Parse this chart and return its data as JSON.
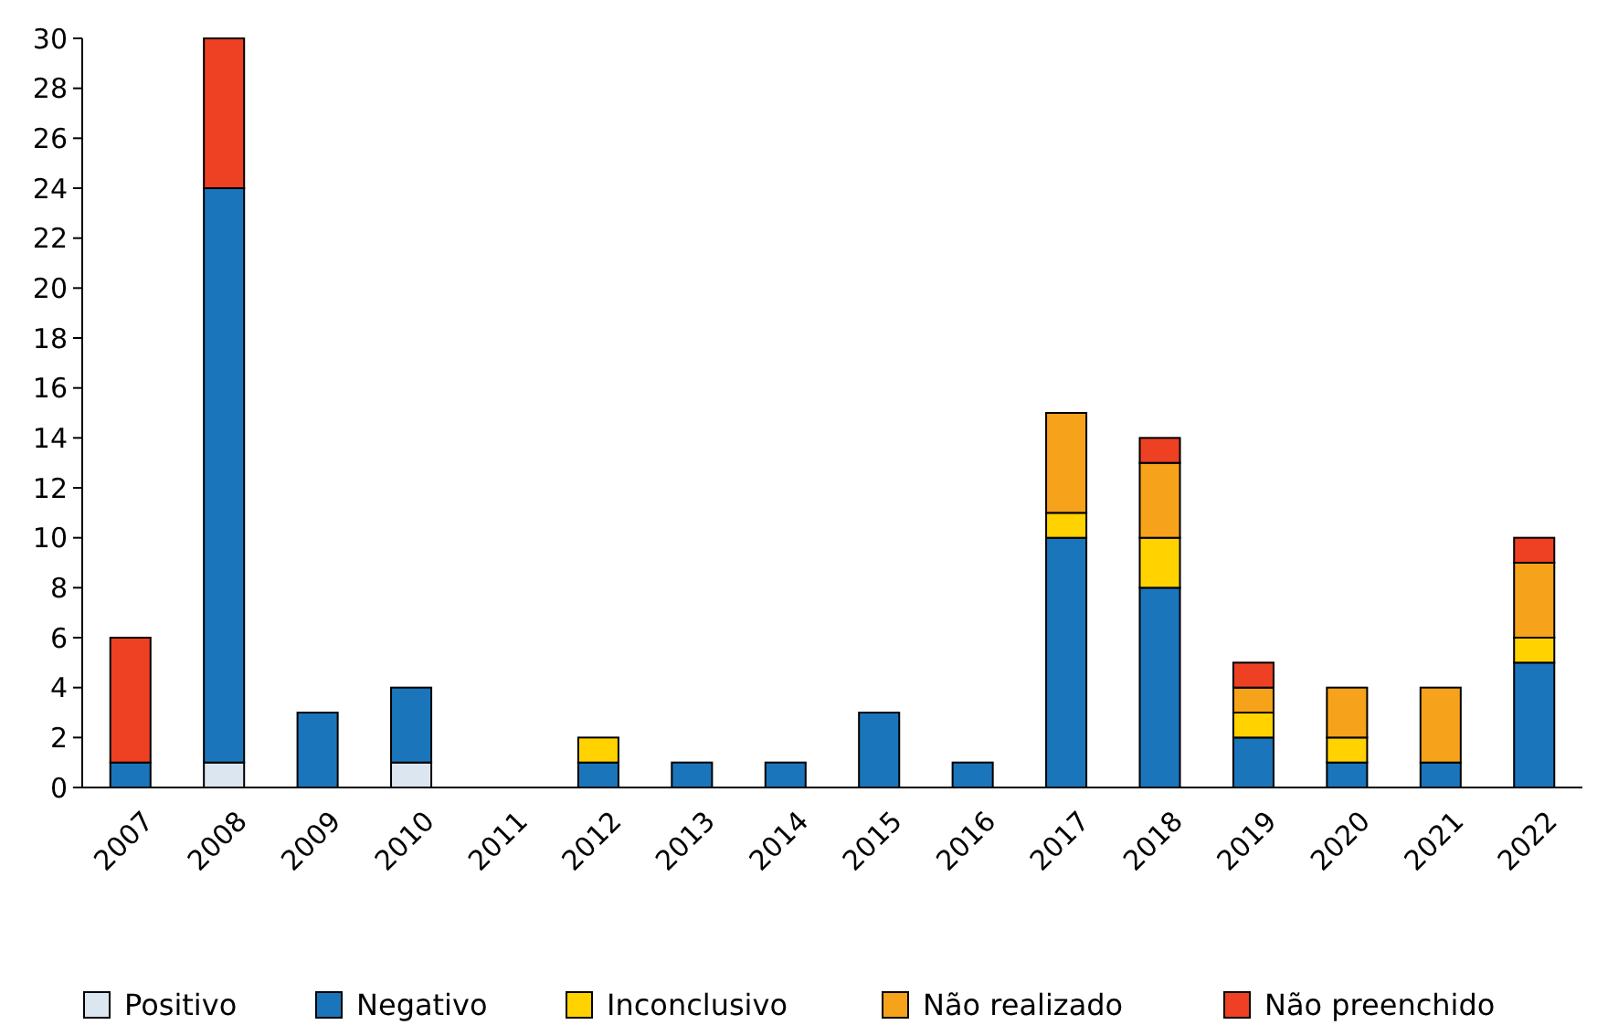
{
  "chart_data": {
    "type": "bar",
    "stacked": true,
    "categories": [
      "2007",
      "2008",
      "2009",
      "2010",
      "2011",
      "2012",
      "2013",
      "2014",
      "2015",
      "2016",
      "2017",
      "2018",
      "2019",
      "2020",
      "2021",
      "2022"
    ],
    "series": [
      {
        "name": "Positivo",
        "color": "#dce6f0",
        "values": [
          0,
          1,
          0,
          1,
          0,
          0,
          0,
          0,
          0,
          0,
          0,
          0,
          0,
          0,
          0,
          0
        ]
      },
      {
        "name": "Negativo",
        "color": "#1b75bb",
        "values": [
          1,
          23,
          3,
          3,
          0,
          1,
          1,
          1,
          3,
          1,
          10,
          8,
          2,
          1,
          1,
          5
        ]
      },
      {
        "name": "Inconclusivo",
        "color": "#ffd200",
        "values": [
          0,
          0,
          0,
          0,
          0,
          1,
          0,
          0,
          0,
          0,
          1,
          2,
          1,
          1,
          0,
          1
        ]
      },
      {
        "name": "Não realizado",
        "color": "#f7a21b",
        "values": [
          0,
          0,
          0,
          0,
          0,
          0,
          0,
          0,
          0,
          0,
          4,
          3,
          1,
          2,
          3,
          3
        ]
      },
      {
        "name": "Não preenchido",
        "color": "#ee4023",
        "values": [
          5,
          6,
          0,
          0,
          0,
          0,
          0,
          0,
          0,
          0,
          0,
          1,
          1,
          0,
          0,
          1
        ]
      }
    ],
    "ylim": [
      0,
      30
    ],
    "yticks": [
      0,
      2,
      4,
      6,
      8,
      10,
      12,
      14,
      16,
      18,
      20,
      22,
      24,
      26,
      28,
      30
    ],
    "grid": false,
    "legend": "bottom"
  }
}
